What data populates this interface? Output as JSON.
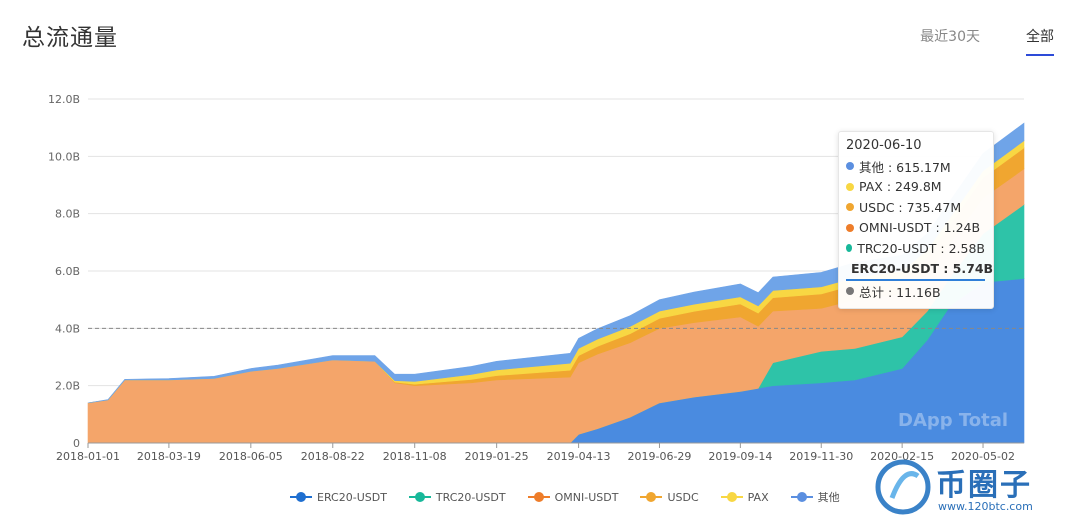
{
  "header": {
    "title": "总流通量",
    "tabs": [
      {
        "label": "最近30天",
        "active": false
      },
      {
        "label": "全部",
        "active": true
      }
    ]
  },
  "chart_data": {
    "type": "area",
    "stacked": true,
    "xlabel": "",
    "ylabel": "",
    "ylim": [
      0,
      12
    ],
    "y_ticks": [
      "0",
      "2.0B",
      "4.0B",
      "6.0B",
      "8.0B",
      "10.0B",
      "12.0B"
    ],
    "x_ticks": [
      "2018-01-01",
      "2018-03-19",
      "2018-06-05",
      "2018-08-22",
      "2018-11-08",
      "2019-01-25",
      "2019-04-13",
      "2019-06-29",
      "2019-09-14",
      "2019-11-30",
      "2020-02-15",
      "2020-05-02"
    ],
    "x_range": [
      "2018-01-01",
      "2020-06-10"
    ],
    "reference_line": 4.0,
    "watermark": "DApp Total",
    "series": [
      {
        "name": "ERC20-USDT",
        "color": "#4a8be0",
        "x": [
          "2018-01-01",
          "2019-04-05",
          "2019-04-13",
          "2019-05-01",
          "2019-06-01",
          "2019-06-29",
          "2019-08-01",
          "2019-09-14",
          "2019-10-15",
          "2019-11-30",
          "2020-01-01",
          "2020-02-15",
          "2020-03-10",
          "2020-04-01",
          "2020-05-02",
          "2020-06-10"
        ],
        "values": [
          0.0,
          0.0,
          0.3,
          0.5,
          0.9,
          1.4,
          1.6,
          1.8,
          2.0,
          2.1,
          2.2,
          2.6,
          3.6,
          4.8,
          5.6,
          5.74
        ]
      },
      {
        "name": "TRC20-USDT",
        "color": "#2ec3a8",
        "x": [
          "2018-01-01",
          "2019-10-01",
          "2019-10-15",
          "2019-11-30",
          "2020-01-01",
          "2020-02-15",
          "2020-03-10",
          "2020-04-01",
          "2020-05-02",
          "2020-06-10"
        ],
        "values": [
          0.0,
          0.0,
          0.8,
          1.1,
          1.1,
          1.1,
          1.0,
          1.0,
          1.7,
          2.58
        ]
      },
      {
        "name": "OMNI-USDT",
        "color": "#f4a56a",
        "x": [
          "2018-01-01",
          "2018-01-20",
          "2018-02-05",
          "2018-03-19",
          "2018-05-01",
          "2018-06-05",
          "2018-07-01",
          "2018-08-22",
          "2018-10-01",
          "2018-10-20",
          "2018-11-08",
          "2019-01-01",
          "2019-01-25",
          "2019-04-05",
          "2019-04-13",
          "2019-05-01",
          "2019-06-01",
          "2019-06-29",
          "2019-08-01",
          "2019-09-14",
          "2019-10-15",
          "2019-11-30",
          "2020-01-01",
          "2020-02-15",
          "2020-03-10",
          "2020-04-01",
          "2020-05-02",
          "2020-06-10"
        ],
        "values": [
          1.4,
          1.5,
          2.2,
          2.2,
          2.25,
          2.5,
          2.6,
          2.9,
          2.85,
          2.1,
          2.0,
          2.1,
          2.2,
          2.3,
          2.5,
          2.6,
          2.6,
          2.6,
          2.6,
          2.6,
          1.8,
          1.5,
          1.7,
          1.5,
          1.3,
          1.2,
          1.25,
          1.24
        ]
      },
      {
        "name": "USDC",
        "color": "#f0a630",
        "x": [
          "2018-01-01",
          "2018-10-01",
          "2018-11-08",
          "2019-01-25",
          "2019-04-13",
          "2019-06-29",
          "2019-09-14",
          "2019-11-30",
          "2020-02-15",
          "2020-05-02",
          "2020-06-10"
        ],
        "values": [
          0.0,
          0.0,
          0.05,
          0.15,
          0.25,
          0.35,
          0.45,
          0.5,
          0.55,
          0.7,
          0.735
        ]
      },
      {
        "name": "PAX",
        "color": "#f8d743",
        "x": [
          "2018-01-01",
          "2018-10-01",
          "2018-11-08",
          "2019-01-25",
          "2019-04-13",
          "2019-06-29",
          "2019-09-14",
          "2019-11-30",
          "2020-02-15",
          "2020-05-02",
          "2020-06-10"
        ],
        "values": [
          0.0,
          0.0,
          0.1,
          0.2,
          0.25,
          0.25,
          0.25,
          0.25,
          0.25,
          0.25,
          0.25
        ]
      },
      {
        "name": "其他",
        "color": "#6fa4e8",
        "x": [
          "2018-01-01",
          "2018-06-05",
          "2018-08-22",
          "2018-10-01",
          "2018-11-08",
          "2019-01-25",
          "2019-04-13",
          "2019-06-29",
          "2019-09-14",
          "2019-11-30",
          "2020-02-15",
          "2020-05-02",
          "2020-06-10"
        ],
        "values": [
          0.0,
          0.1,
          0.15,
          0.2,
          0.25,
          0.3,
          0.35,
          0.4,
          0.45,
          0.5,
          0.55,
          0.6,
          0.615
        ]
      }
    ],
    "tooltip": {
      "date": "2020-06-10",
      "rows": [
        {
          "label": "其他 : 615.17M",
          "color": "#5b8fe0",
          "bold": false
        },
        {
          "label": "PAX : 249.8M",
          "color": "#f8d743",
          "bold": false
        },
        {
          "label": "USDC : 735.47M",
          "color": "#f0a630",
          "bold": false
        },
        {
          "label": "OMNI-USDT : 1.24B",
          "color": "#ee7d2a",
          "bold": false
        },
        {
          "label": "TRC20-USDT : 2.58B",
          "color": "#18b89a",
          "bold": false
        },
        {
          "label": "ERC20-USDT : 5.74B",
          "color": "#1f6fd0",
          "bold": true
        },
        {
          "label": "总计 : 11.16B",
          "color": "#777777",
          "bold": false
        }
      ]
    },
    "legend": {
      "position": "bottom",
      "items": [
        {
          "label": "ERC20-USDT",
          "color": "#1f6fd0"
        },
        {
          "label": "TRC20-USDT",
          "color": "#18b89a"
        },
        {
          "label": "OMNI-USDT",
          "color": "#ee7d2a"
        },
        {
          "label": "USDC",
          "color": "#f0a630"
        },
        {
          "label": "PAX",
          "color": "#f8d743"
        },
        {
          "label": "其他",
          "color": "#5b8fe0"
        }
      ]
    }
  },
  "brand": {
    "name": "币圈子",
    "url": "www.120btc.com"
  }
}
